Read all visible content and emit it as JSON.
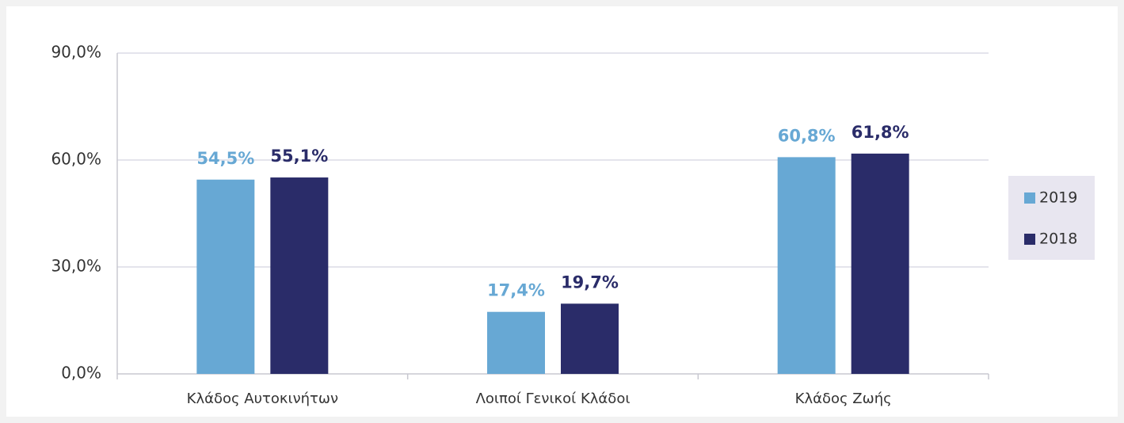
{
  "chart_data": {
    "type": "bar",
    "categories": [
      "Κλάδος Αυτοκινήτων",
      "Λοιποί Γενικοί Κλάδοι",
      "Κλάδος Ζωής"
    ],
    "series": [
      {
        "name": "2019",
        "color": "#67a8d4",
        "values": [
          54.5,
          17.4,
          60.8
        ],
        "value_labels": [
          "54,5%",
          "17,4%",
          "60,8%"
        ]
      },
      {
        "name": "2018",
        "color": "#2a2c69",
        "values": [
          55.1,
          19.7,
          61.8
        ],
        "value_labels": [
          "55,1%",
          "19,7%",
          "61,8%"
        ]
      }
    ],
    "ylim": [
      0,
      90
    ],
    "yticks": [
      {
        "value": 0,
        "label": "0,0%"
      },
      {
        "value": 30,
        "label": "30,0%"
      },
      {
        "value": 60,
        "label": "60,0%"
      },
      {
        "value": 90,
        "label": "90,0%"
      }
    ],
    "grid": true,
    "legend": "right"
  }
}
